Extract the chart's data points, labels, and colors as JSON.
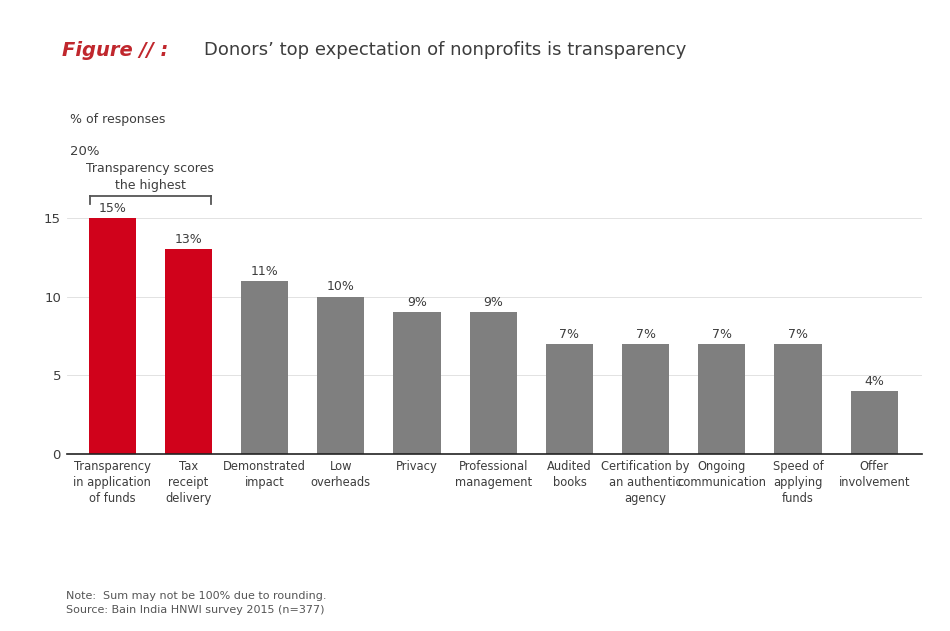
{
  "categories": [
    "Transparency\nin application\nof funds",
    "Tax\nreceipt\ndelivery",
    "Demonstrated\nimpact",
    "Low\noverheads",
    "Privacy",
    "Professional\nmanagement",
    "Audited\nbooks",
    "Certification by\nan authentic\nagency",
    "Ongoing\ncommunication",
    "Speed of\napplying\nfunds",
    "Offer\ninvolvement"
  ],
  "values": [
    15,
    13,
    11,
    10,
    9,
    9,
    7,
    7,
    7,
    7,
    4
  ],
  "bar_colors": [
    "#d0021b",
    "#d0021b",
    "#7f7f7f",
    "#7f7f7f",
    "#7f7f7f",
    "#7f7f7f",
    "#7f7f7f",
    "#7f7f7f",
    "#7f7f7f",
    "#7f7f7f",
    "#7f7f7f"
  ],
  "value_labels": [
    "15%",
    "13%",
    "11%",
    "10%",
    "9%",
    "9%",
    "7%",
    "7%",
    "7%",
    "7%",
    "4%"
  ],
  "title_italic": "Figure // :",
  "title_main": "Donors’ top expectation of nonprofits is transparency",
  "ylabel_line1": "% of responses",
  "ylabel_line2": "20%",
  "yticks": [
    0,
    5,
    10,
    15
  ],
  "ylim": [
    0,
    20
  ],
  "annotation_text": "Transparency scores\nthe highest",
  "note_text": "Note:  Sum may not be 100% due to rounding.\nSource: Bain India HNWI survey 2015 (n=377)",
  "background_color": "#ffffff",
  "red_color": "#c0272d",
  "gray_color": "#7f7f7f",
  "title_color_main": "#3d3d3d",
  "label_color": "#3d3d3d",
  "tick_color": "#3d3d3d",
  "bracket_color": "#555555",
  "note_color": "#555555"
}
